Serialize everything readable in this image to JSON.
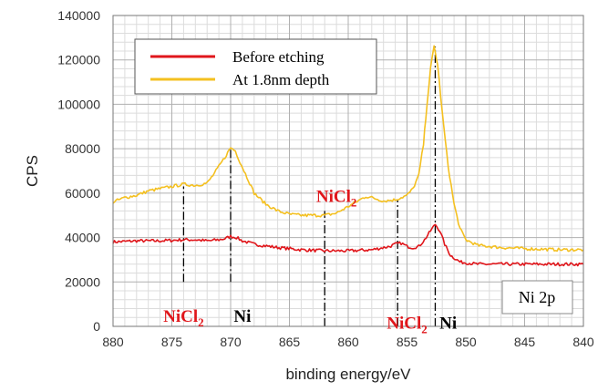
{
  "chart_data": {
    "type": "line",
    "xlabel": "binding energy/eV",
    "ylabel": "CPS",
    "xlim": [
      880,
      840
    ],
    "x_reversed": true,
    "ylim": [
      0,
      140000
    ],
    "xticks": [
      880,
      875,
      870,
      865,
      860,
      855,
      850,
      845,
      840
    ],
    "yticks": [
      0,
      20000,
      40000,
      60000,
      80000,
      100000,
      120000,
      140000
    ],
    "grid": true,
    "legend_position": "top-left",
    "series": [
      {
        "name": "Before etching",
        "color": "#e0161b",
        "points": [
          [
            880,
            38000
          ],
          [
            878,
            38500
          ],
          [
            876,
            38500
          ],
          [
            874,
            39000
          ],
          [
            873,
            39000
          ],
          [
            872,
            38500
          ],
          [
            871,
            39000
          ],
          [
            870.5,
            39500
          ],
          [
            870,
            40500
          ],
          [
            869.5,
            40000
          ],
          [
            869,
            38500
          ],
          [
            868,
            37000
          ],
          [
            866,
            35500
          ],
          [
            864,
            34500
          ],
          [
            862,
            34000
          ],
          [
            860,
            34000
          ],
          [
            858,
            34500
          ],
          [
            856.5,
            36000
          ],
          [
            856,
            37000
          ],
          [
            855.5,
            37500
          ],
          [
            855,
            36000
          ],
          [
            854.5,
            35500
          ],
          [
            854,
            36000
          ],
          [
            853.5,
            39000
          ],
          [
            853,
            43000
          ],
          [
            852.6,
            46000
          ],
          [
            852.2,
            43000
          ],
          [
            851.8,
            37000
          ],
          [
            851.3,
            32000
          ],
          [
            850.5,
            29000
          ],
          [
            849,
            28000
          ],
          [
            846,
            28000
          ],
          [
            843,
            28000
          ],
          [
            840,
            28000
          ]
        ]
      },
      {
        "name": "At 1.8nm depth",
        "color": "#f4c020",
        "points": [
          [
            880,
            56000
          ],
          [
            879,
            58000
          ],
          [
            878,
            59000
          ],
          [
            877,
            61000
          ],
          [
            876,
            62000
          ],
          [
            875,
            63000
          ],
          [
            874,
            64000
          ],
          [
            873,
            63500
          ],
          [
            872,
            64500
          ],
          [
            871.5,
            68000
          ],
          [
            871,
            72000
          ],
          [
            870.5,
            76000
          ],
          [
            870,
            80500
          ],
          [
            869.6,
            79000
          ],
          [
            869.2,
            74000
          ],
          [
            868.5,
            66000
          ],
          [
            868,
            60000
          ],
          [
            867,
            55000
          ],
          [
            866,
            52000
          ],
          [
            865,
            50500
          ],
          [
            864,
            50000
          ],
          [
            862,
            50000
          ],
          [
            861,
            51000
          ],
          [
            860,
            54000
          ],
          [
            859,
            57000
          ],
          [
            858.5,
            58500
          ],
          [
            858,
            58000
          ],
          [
            857,
            56500
          ],
          [
            856,
            57000
          ],
          [
            855,
            59000
          ],
          [
            854.5,
            62000
          ],
          [
            854,
            68000
          ],
          [
            853.6,
            82000
          ],
          [
            853.3,
            100000
          ],
          [
            853,
            116000
          ],
          [
            852.7,
            126000
          ],
          [
            852.4,
            118000
          ],
          [
            852,
            96000
          ],
          [
            851.5,
            72000
          ],
          [
            851,
            55000
          ],
          [
            850.5,
            44000
          ],
          [
            850,
            39000
          ],
          [
            849,
            36500
          ],
          [
            847,
            35500
          ],
          [
            845,
            35000
          ],
          [
            842,
            34500
          ],
          [
            840,
            34500
          ]
        ]
      }
    ],
    "reference_lines": [
      {
        "x": 874,
        "y_from": 20000,
        "y_to": 63000
      },
      {
        "x": 870,
        "y_from": 20000,
        "y_to": 80000
      },
      {
        "x": 862,
        "y_from": 0,
        "y_to": 52000
      },
      {
        "x": 855.8,
        "y_from": 0,
        "y_to": 57000
      },
      {
        "x": 852.6,
        "y_from": 0,
        "y_to": 126000
      }
    ],
    "annotations": [
      {
        "base": "NiCl",
        "sub": "2",
        "x": 874,
        "y": 2000,
        "color": "#e0161b"
      },
      {
        "base": "Ni",
        "sub": "",
        "x": 869,
        "y": 2000,
        "color": "#000000"
      },
      {
        "base": "NiCl",
        "sub": "2",
        "x": 861,
        "y": 56000,
        "color": "#e0161b"
      },
      {
        "base": "NiCl",
        "sub": "2",
        "x": 855,
        "y": -1000,
        "color": "#e0161b"
      },
      {
        "base": "Ni",
        "sub": "",
        "x": 851.5,
        "y": -1000,
        "color": "#000000"
      }
    ],
    "region_label": "Ni 2p"
  }
}
